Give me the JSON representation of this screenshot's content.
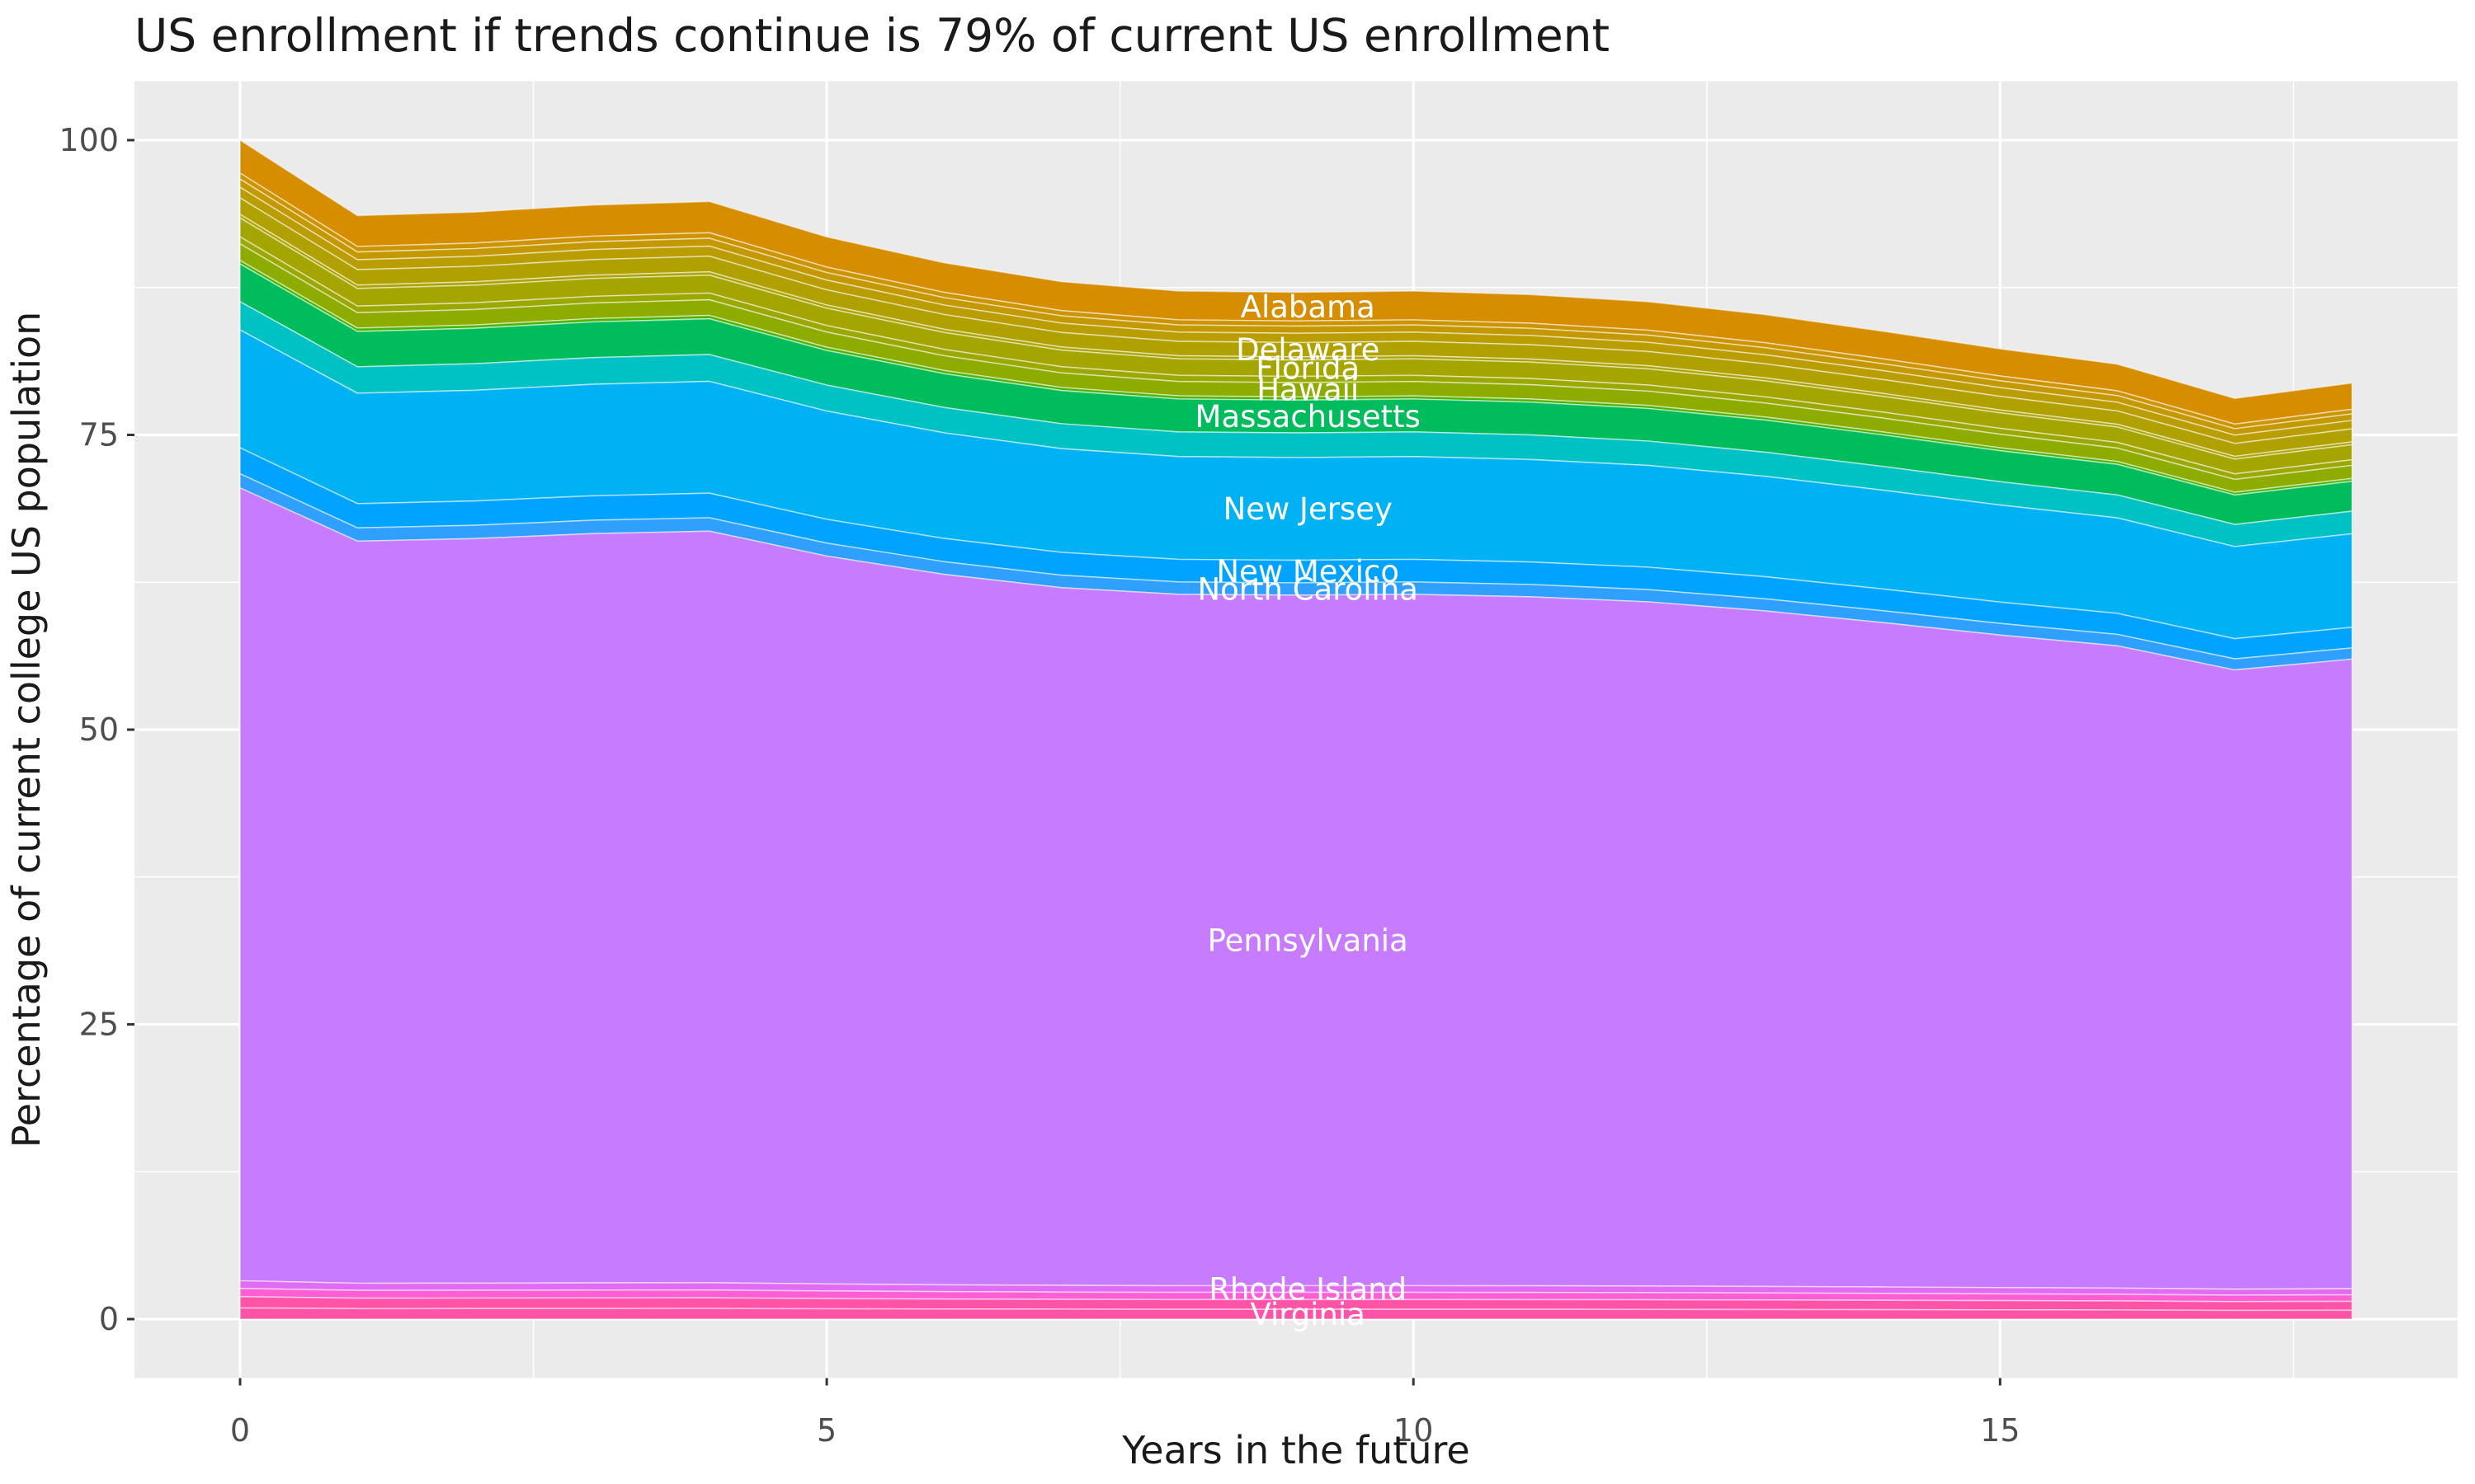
{
  "title": "US enrollment if trends continue is 79% of current US enrollment",
  "axes": {
    "x": {
      "title": "Years in the future",
      "ticks": [
        0,
        5,
        10,
        15
      ],
      "minor_ticks": [
        2.5,
        7.5,
        12.5,
        17.5
      ],
      "range": [
        0,
        18
      ],
      "expand": 0.9
    },
    "y": {
      "title": "Percentage of current college US population",
      "ticks": [
        0,
        25,
        50,
        75,
        100
      ],
      "minor_ticks": [
        12.5,
        37.5,
        62.5,
        87.5
      ],
      "range": [
        0,
        100
      ],
      "expand": 5
    }
  },
  "theme": {
    "panel_background": "#EBEBEB",
    "grid_color": "#FFFFFF",
    "tick_mark_color": "#333333",
    "tick_label_color": "#4D4D4D",
    "band_label_color": "#FFFFFF",
    "separator_color": "rgba(255,255,255,0.5)"
  },
  "chart_data": {
    "type": "area",
    "stacked": true,
    "grid": "on",
    "legend": "none",
    "xlabel": "Years in the future",
    "ylabel": "Percentage of current college US population",
    "xlim": [
      0,
      18
    ],
    "ylim": [
      0,
      100
    ],
    "years": [
      0,
      1,
      2,
      3,
      4,
      5,
      6,
      7,
      8,
      9,
      10,
      11,
      12,
      13,
      14,
      15,
      16,
      17,
      18
    ],
    "total_percent_by_year": [
      100,
      93.6,
      93.9,
      94.5,
      94.8,
      91.8,
      89.6,
      88.0,
      87.2,
      87.1,
      87.2,
      86.9,
      86.3,
      85.2,
      83.8,
      82.3,
      81.0,
      78.1,
      79.4
    ],
    "label_anchor_year": 9.1,
    "series_note": "stacked top-to-bottom alphabetically; each series value at year t = share_of_total * total_percent_by_year[t]; unlabeled thin bands are states whose bands were too small to label in the original",
    "series": [
      {
        "name": "Alabama",
        "label": "Alabama",
        "color": "#D68E00",
        "share_of_total": 0.028
      },
      {
        "name": "",
        "label": null,
        "color": "#CC9400",
        "share_of_total": 0.005
      },
      {
        "name": "",
        "label": null,
        "color": "#C39800",
        "share_of_total": 0.007
      },
      {
        "name": "",
        "label": null,
        "color": "#BA9D00",
        "share_of_total": 0.009
      },
      {
        "name": "Delaware",
        "label": "Delaware",
        "color": "#B0A100",
        "share_of_total": 0.014
      },
      {
        "name": "",
        "label": null,
        "color": "#ABA300",
        "share_of_total": 0.003
      },
      {
        "name": "Florida",
        "label": "Florida",
        "color": "#A5A500",
        "share_of_total": 0.016
      },
      {
        "name": "",
        "label": null,
        "color": "#9AA800",
        "share_of_total": 0.006
      },
      {
        "name": "Hawaii",
        "label": "Hawaii",
        "color": "#8EAB00",
        "share_of_total": 0.014
      },
      {
        "name": "",
        "label": null,
        "color": "#49B500",
        "share_of_total": 0.003
      },
      {
        "name": "Massachusetts",
        "label": "Massachusetts",
        "color": "#00BC5D",
        "share_of_total": 0.032
      },
      {
        "name": "",
        "label": null,
        "color": "#00C1C4",
        "share_of_total": 0.024
      },
      {
        "name": "New Jersey",
        "label": "New Jersey",
        "color": "#00B2F3",
        "share_of_total": 0.1
      },
      {
        "name": "New Mexico",
        "label": "New Mexico",
        "color": "#00A3FF",
        "share_of_total": 0.022
      },
      {
        "name": "North Carolina",
        "label": "North Carolina",
        "color": "#30A0FF",
        "share_of_total": 0.012
      },
      {
        "name": "Pennsylvania",
        "label": "Pennsylvania",
        "color": "#C77CFF",
        "share_of_total": 0.6725
      },
      {
        "name": "Rhode Island",
        "label": "Rhode Island",
        "color": "#E06CF3",
        "share_of_total": 0.0065
      },
      {
        "name": "",
        "label": null,
        "color": "#FB5FD3",
        "share_of_total": 0.007
      },
      {
        "name": "",
        "label": null,
        "color": "#FF53A8",
        "share_of_total": 0.0095
      },
      {
        "name": "Virginia",
        "label": "Virginia",
        "color": "#FF53A8",
        "share_of_total": 0.0095
      }
    ]
  }
}
